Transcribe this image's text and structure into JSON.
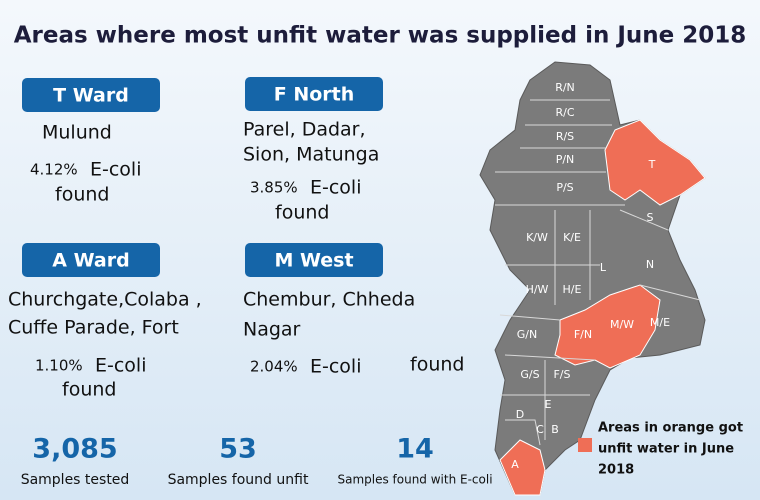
{
  "title": "Areas where most unfit water was supplied in June 2018",
  "wards": [
    {
      "name": "T Ward",
      "areas": [
        "Mulund"
      ],
      "pct": "4.12%",
      "label": "E-coli",
      "found": "found"
    },
    {
      "name": "F North",
      "areas": [
        "Parel, Dadar,",
        "Sion, Matunga"
      ],
      "pct": "3.85%",
      "label": "E-coli",
      "found": "found"
    },
    {
      "name": "A Ward",
      "areas": [
        "Churchgate,Colaba ,",
        "Cuffe Parade, Fort"
      ],
      "pct": "1.10%",
      "label": "E-coli",
      "found": "found"
    },
    {
      "name": "M West",
      "areas": [
        "Chembur, Chheda",
        "Nagar"
      ],
      "pct": "2.04%",
      "label": "E-coli",
      "found": "found"
    }
  ],
  "stats": [
    {
      "value": "3,085",
      "label": "Samples tested"
    },
    {
      "value": "53",
      "label": "Samples found unfit"
    },
    {
      "value": "14",
      "label": "Samples found with E-coli"
    }
  ],
  "map": {
    "labels": [
      "R/N",
      "R/C",
      "R/S",
      "P/N",
      "P/S",
      "T",
      "S",
      "K/W",
      "K/E",
      "L",
      "N",
      "H/W",
      "H/E",
      "G/N",
      "F/N",
      "M/W",
      "M/E",
      "G/S",
      "F/S",
      "E",
      "D",
      "C",
      "B",
      "A"
    ]
  },
  "legend": {
    "lines": [
      "Areas in orange got",
      "unfit water in June",
      "2018"
    ]
  }
}
